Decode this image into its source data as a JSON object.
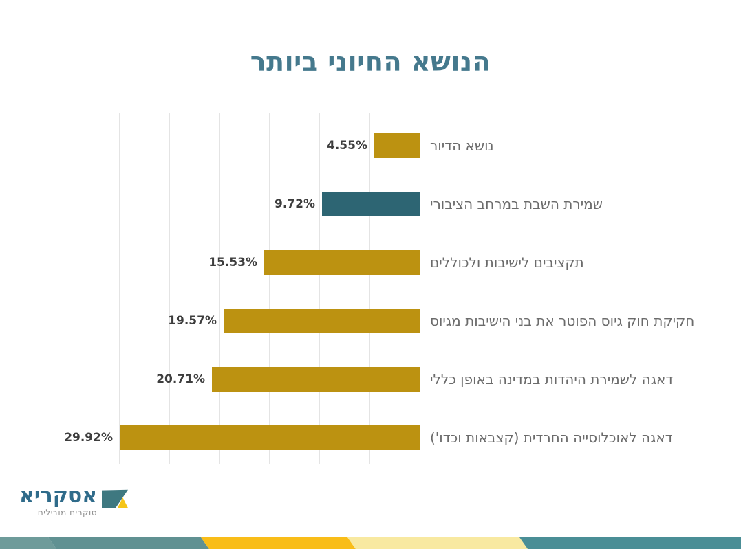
{
  "chart_data": {
    "type": "bar",
    "orientation": "horizontal-rtl",
    "title": "הנושא החיוני ביותר",
    "categories": [
      "נושא הדיור",
      "שמירת השבת במרחב הציבורי",
      "תקציבים לישיבות ולכוללים",
      "חקיקת חוק גיוס הפוטר את בני הישיבות מגיוס",
      "דאגה לשמירת היהדות במדינה באופן כללי",
      "דאגה לאוכלוסייה החרדית (קצבאות וכדו')"
    ],
    "values": [
      4.55,
      9.72,
      15.53,
      19.57,
      20.71,
      29.92
    ],
    "value_labels": [
      "4.55%",
      "9.72%",
      "15.53%",
      "19.57%",
      "20.71%",
      "29.92%"
    ],
    "bar_color_keys": [
      "gold",
      "teal",
      "gold",
      "gold",
      "gold",
      "gold"
    ],
    "xlim": [
      0,
      35
    ],
    "grid_step": 5,
    "grid": true,
    "legend": false,
    "xlabel": "",
    "ylabel": ""
  },
  "colors": {
    "gold": "#bc9211",
    "teal": "#2d6573",
    "title_text": "#45798d",
    "value_text": "#3d3d3d",
    "label_text": "#6b6b6b",
    "gridline": "#e4e4e4",
    "logo_text": "#2f6b8a",
    "logo_tagline": "#8f8f8f",
    "logo_icon_teal": "#3e7880",
    "logo_icon_yellow": "#f5c518"
  },
  "logo": {
    "name": "אסקריא",
    "tagline": "סוקרים מובילים"
  },
  "footer_stripe": {
    "skew": 12,
    "segments": [
      {
        "name": "teal-light",
        "color": "#6e9b9a",
        "from": 0,
        "to": 70
      },
      {
        "name": "teal-mid",
        "color": "#609192",
        "from": 70,
        "to": 292
      },
      {
        "name": "gold",
        "color": "#f9bd18",
        "from": 292,
        "to": 505
      },
      {
        "name": "pale-yellow",
        "color": "#f8e9a1",
        "from": 505,
        "to": 755
      },
      {
        "name": "teal-dark",
        "color": "#4a8e96",
        "from": 755,
        "to": 1077
      }
    ]
  }
}
